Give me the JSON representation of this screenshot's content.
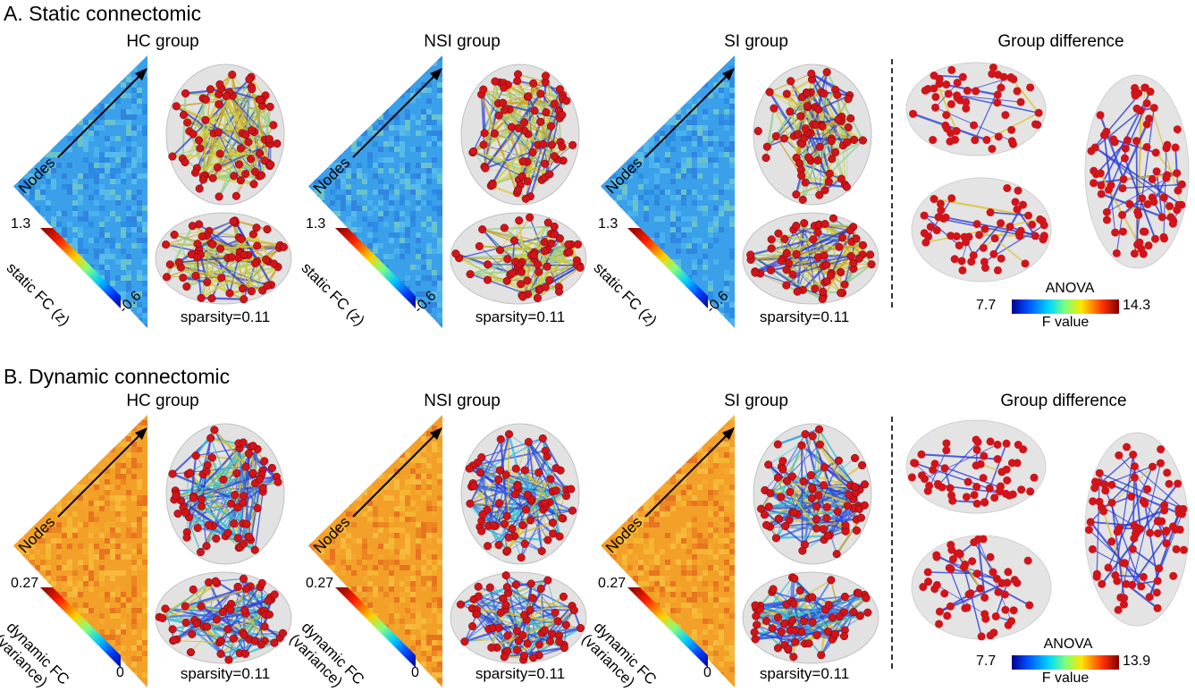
{
  "sections": [
    {
      "id": "static",
      "title": "A. Static connectomic",
      "groups": [
        {
          "title": "HC group",
          "sparsity": "sparsity=0.11"
        },
        {
          "title": "NSI group",
          "sparsity": "sparsity=0.11"
        },
        {
          "title": "SI group",
          "sparsity": "sparsity=0.11"
        }
      ],
      "nodes_label": "Nodes",
      "colorbar": {
        "max": "1.3",
        "min": "-0.6",
        "label_line1": "static FC (z)",
        "label_line2": ""
      },
      "matrix_colors": {
        "base": "#3aa0ea",
        "alt": [
          "#1f7fe0",
          "#55c1f0",
          "#2a6fd6",
          "#6fd0e8",
          "#8ee0b0"
        ]
      },
      "difference": {
        "title": "Group difference",
        "legend_title": "ANOVA",
        "min": "7.7",
        "max": "14.3",
        "unit": "F value"
      }
    },
    {
      "id": "dynamic",
      "title": "B. Dynamic connectomic",
      "groups": [
        {
          "title": "HC group",
          "sparsity": "sparsity=0.11"
        },
        {
          "title": "NSI group",
          "sparsity": "sparsity=0.11"
        },
        {
          "title": "SI group",
          "sparsity": "sparsity=0.11"
        }
      ],
      "nodes_label": "Nodes",
      "colorbar": {
        "max": "0.27",
        "min": "0",
        "label_line1": "dynamic FC",
        "label_line2": "(variance)"
      },
      "matrix_colors": {
        "base": "#f2a028",
        "alt": [
          "#e8701e",
          "#f7c83a",
          "#e05018",
          "#f5b030",
          "#fad050"
        ]
      },
      "difference": {
        "title": "Group difference",
        "legend_title": "ANOVA",
        "min": "7.7",
        "max": "13.9",
        "unit": "F value"
      }
    }
  ],
  "colors": {
    "node": "#d0141a",
    "brain": "#cfcfcf",
    "edge_blue": "#2b3fd6",
    "edge_yellow": "#d6cf3a"
  }
}
